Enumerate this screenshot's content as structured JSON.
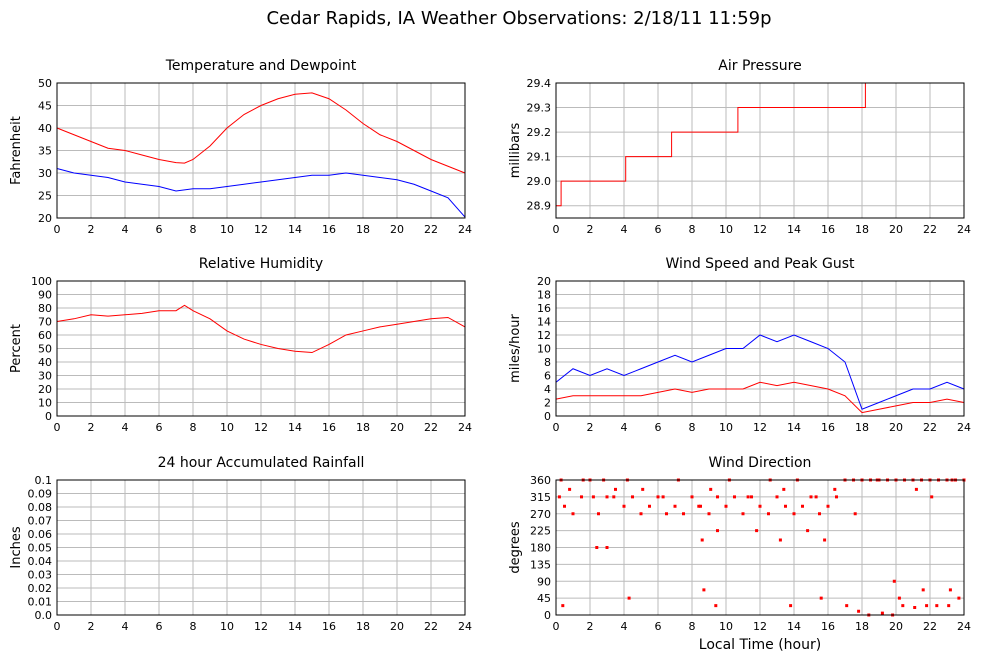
{
  "page": {
    "title": "Cedar Rapids, IA Weather Observations: 2/18/11 11:59p",
    "x_axis_title": "Local Time (hour)"
  },
  "colors": {
    "primary_series": "#ff0000",
    "secondary_series": "#0000ff",
    "grid": "#bbbbbb",
    "frame": "#000000"
  },
  "chart_data": [
    {
      "id": "temperature",
      "type": "line",
      "title": "Temperature and Dewpoint",
      "ylabel": "Fahrenheit",
      "xlabel": "",
      "xlim": [
        0,
        24
      ],
      "ylim": [
        20,
        50
      ],
      "xticks": [
        0,
        2,
        4,
        6,
        8,
        10,
        12,
        14,
        16,
        18,
        20,
        22,
        24
      ],
      "yticks": [
        20,
        25,
        30,
        35,
        40,
        45,
        50
      ],
      "grid": true,
      "legend": "none",
      "series": [
        {
          "color": "#ff0000",
          "x": [
            0,
            1,
            2,
            3,
            4,
            5,
            6,
            7,
            7.5,
            8,
            9,
            10,
            11,
            12,
            13,
            14,
            15,
            16,
            17,
            18,
            19,
            20,
            21,
            22,
            23,
            24
          ],
          "y": [
            40,
            38.5,
            37,
            35.5,
            35,
            34,
            33,
            32.3,
            32.2,
            33,
            36,
            40,
            43,
            45,
            46.5,
            47.5,
            47.8,
            46.5,
            44,
            41,
            38.5,
            37,
            35,
            33,
            31.5,
            30
          ]
        },
        {
          "color": "#0000ff",
          "x": [
            0,
            1,
            2,
            3,
            4,
            5,
            6,
            7,
            8,
            9,
            10,
            11,
            12,
            13,
            14,
            15,
            16,
            17,
            18,
            19,
            20,
            21,
            22,
            23,
            24
          ],
          "y": [
            31,
            30,
            29.5,
            29,
            28,
            27.5,
            27,
            26,
            26.5,
            26.5,
            27,
            27.5,
            28,
            28.5,
            29,
            29.5,
            29.5,
            30,
            29.5,
            29,
            28.5,
            27.5,
            26,
            24.5,
            20.2
          ]
        }
      ]
    },
    {
      "id": "pressure",
      "type": "line",
      "title": "Air Pressure",
      "ylabel": "millibars",
      "xlabel": "",
      "xlim": [
        0,
        24
      ],
      "ylim": [
        28.85,
        29.4
      ],
      "xticks": [
        0,
        2,
        4,
        6,
        8,
        10,
        12,
        14,
        16,
        18,
        20,
        22,
        24
      ],
      "yticks": [
        28.9,
        29.0,
        29.1,
        29.2,
        29.3,
        29.4
      ],
      "ytick_labels": [
        "28.9",
        "29.0",
        "29.1",
        "29.2",
        "29.3",
        "29.4"
      ],
      "grid": true,
      "legend": "none",
      "series": [
        {
          "color": "#ff0000",
          "step": true,
          "x": [
            0,
            0.3,
            4.1,
            6.8,
            10.7,
            18.2,
            24
          ],
          "y": [
            28.9,
            29.0,
            29.1,
            29.2,
            29.3,
            29.4,
            29.4
          ]
        }
      ]
    },
    {
      "id": "humidity",
      "type": "line",
      "title": "Relative Humidity",
      "ylabel": "Percent",
      "xlabel": "",
      "xlim": [
        0,
        24
      ],
      "ylim": [
        0,
        100
      ],
      "xticks": [
        0,
        2,
        4,
        6,
        8,
        10,
        12,
        14,
        16,
        18,
        20,
        22,
        24
      ],
      "yticks": [
        0,
        10,
        20,
        30,
        40,
        50,
        60,
        70,
        80,
        90,
        100
      ],
      "grid": true,
      "legend": "none",
      "series": [
        {
          "color": "#ff0000",
          "x": [
            0,
            1,
            2,
            3,
            4,
            5,
            6,
            7,
            7.5,
            8,
            9,
            10,
            11,
            12,
            13,
            14,
            15,
            16,
            17,
            18,
            19,
            20,
            21,
            22,
            23,
            24
          ],
          "y": [
            70,
            72,
            75,
            74,
            75,
            76,
            78,
            78,
            82,
            78,
            72,
            63,
            57,
            53,
            50,
            48,
            47,
            53,
            60,
            63,
            66,
            68,
            70,
            72,
            73,
            66
          ]
        }
      ]
    },
    {
      "id": "wind_speed",
      "type": "line",
      "title": "Wind Speed and Peak Gust",
      "ylabel": "miles/hour",
      "xlabel": "",
      "xlim": [
        0,
        24
      ],
      "ylim": [
        0,
        20
      ],
      "xticks": [
        0,
        2,
        4,
        6,
        8,
        10,
        12,
        14,
        16,
        18,
        20,
        22,
        24
      ],
      "yticks": [
        0,
        2,
        4,
        6,
        8,
        10,
        12,
        14,
        16,
        18,
        20
      ],
      "grid": true,
      "legend": "none",
      "series": [
        {
          "color": "#0000ff",
          "x": [
            0,
            1,
            2,
            3,
            4,
            5,
            6,
            7,
            8,
            9,
            10,
            11,
            12,
            13,
            14,
            15,
            16,
            17,
            18,
            19,
            20,
            21,
            22,
            23,
            24
          ],
          "y": [
            5,
            7,
            6,
            7,
            6,
            7,
            8,
            9,
            8,
            9,
            10,
            10,
            12,
            11,
            12,
            11,
            10,
            8,
            1,
            2,
            3,
            4,
            4,
            5,
            4
          ]
        },
        {
          "color": "#ff0000",
          "x": [
            0,
            1,
            2,
            3,
            4,
            5,
            6,
            7,
            8,
            9,
            10,
            11,
            12,
            13,
            14,
            15,
            16,
            17,
            18,
            19,
            20,
            21,
            22,
            23,
            24
          ],
          "y": [
            2.5,
            3,
            3,
            3,
            3,
            3,
            3.5,
            4,
            3.5,
            4,
            4,
            4,
            5,
            4.5,
            5,
            4.5,
            4,
            3,
            0.5,
            1,
            1.5,
            2,
            2,
            2.5,
            2
          ]
        }
      ]
    },
    {
      "id": "rainfall",
      "type": "line",
      "title": "24 hour Accumulated Rainfall",
      "ylabel": "Inches",
      "xlabel": "",
      "xlim": [
        0,
        24
      ],
      "ylim": [
        0,
        0.1
      ],
      "xticks": [
        0,
        2,
        4,
        6,
        8,
        10,
        12,
        14,
        16,
        18,
        20,
        22,
        24
      ],
      "yticks": [
        0,
        0.01,
        0.02,
        0.03,
        0.04,
        0.05,
        0.06,
        0.07,
        0.08,
        0.09,
        0.1
      ],
      "ytick_labels": [
        "0.0",
        "0.01",
        "0.02",
        "0.03",
        "0.04",
        "0.05",
        "0.06",
        "0.07",
        "0.08",
        "0.09",
        "0.1"
      ],
      "grid": true,
      "legend": "none",
      "series": [
        {
          "color": "#ff0000",
          "x": [
            0,
            24
          ],
          "y": [
            0,
            0
          ]
        }
      ]
    },
    {
      "id": "wind_direction",
      "type": "scatter",
      "title": "Wind Direction",
      "ylabel": "degrees",
      "xlabel": "Local Time (hour)",
      "xlim": [
        0,
        24
      ],
      "ylim": [
        0,
        360
      ],
      "xticks": [
        0,
        2,
        4,
        6,
        8,
        10,
        12,
        14,
        16,
        18,
        20,
        22,
        24
      ],
      "yticks": [
        0,
        45,
        90,
        135,
        180,
        225,
        270,
        315,
        360
      ],
      "grid": true,
      "legend": "none",
      "series": [
        {
          "color": "#ff0000",
          "x": [
            0.2,
            0.5,
            1,
            1.5,
            2,
            2.5,
            3,
            3.5,
            4,
            4.5,
            5,
            5.5,
            6,
            6.5,
            7,
            7.5,
            8,
            8.5,
            9,
            9.5,
            10,
            10.5,
            11,
            11.5,
            12,
            12.5,
            13,
            13.5,
            14,
            14.5,
            15,
            15.5,
            16,
            16.5,
            17,
            17.5,
            18,
            18.5,
            19,
            19.5,
            20,
            20.5,
            21,
            21.5,
            22,
            22.5,
            23,
            23.5,
            24,
            0.3,
            0.8,
            1.6,
            2.2,
            2.8,
            3.4,
            4.2,
            5.1,
            6.3,
            7.2,
            8.4,
            9.1,
            10.2,
            11.3,
            12.6,
            13.4,
            14.2,
            15.3,
            16.4,
            17.6,
            18.9,
            21.2,
            22.1,
            23.3,
            2.4,
            3,
            8.6,
            9.5,
            11.8,
            13.2,
            14.8,
            15.8,
            0.4,
            4.3,
            9.4,
            13.8,
            15.6,
            17.1,
            17.8,
            18.4,
            19.2,
            19.8,
            20.4,
            21.1,
            21.8,
            22.4,
            23.1,
            23.7,
            8.7,
            19.9,
            20.2,
            21.6,
            23.2
          ],
          "y": [
            315,
            290,
            270,
            315,
            360,
            270,
            315,
            335,
            290,
            315,
            270,
            290,
            315,
            270,
            290,
            270,
            315,
            290,
            270,
            315,
            290,
            315,
            270,
            315,
            290,
            270,
            315,
            290,
            270,
            290,
            315,
            270,
            290,
            315,
            360,
            360,
            360,
            360,
            360,
            360,
            360,
            360,
            360,
            360,
            360,
            360,
            360,
            360,
            360,
            360,
            335,
            360,
            315,
            360,
            315,
            360,
            335,
            315,
            360,
            290,
            335,
            360,
            315,
            360,
            335,
            360,
            315,
            335,
            270,
            360,
            335,
            315,
            360,
            180,
            180,
            200,
            225,
            225,
            200,
            225,
            200,
            25,
            45,
            25,
            25,
            45,
            25,
            10,
            0,
            5,
            0,
            25,
            20,
            25,
            25,
            25,
            45,
            67,
            90,
            45,
            67,
            67
          ]
        }
      ]
    }
  ]
}
